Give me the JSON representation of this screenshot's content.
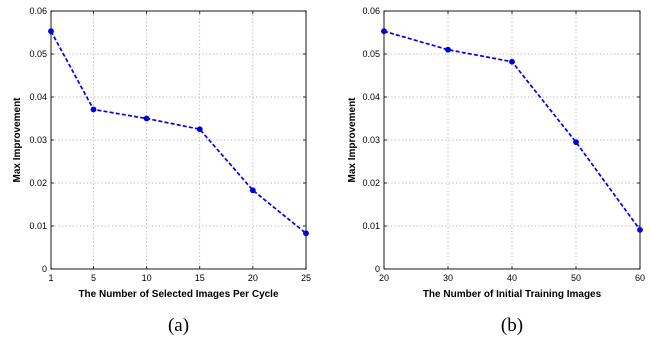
{
  "chart_data": [
    {
      "type": "line",
      "xlabel": "The Number of Selected Images Per Cycle",
      "ylabel": "Max Improvement",
      "caption": "(a)",
      "xlim": [
        1,
        25
      ],
      "ylim": [
        0,
        0.06
      ],
      "xticks": [
        1,
        5,
        10,
        15,
        20,
        25
      ],
      "yticks": [
        0,
        0.01,
        0.02,
        0.03,
        0.04,
        0.05,
        0.06
      ],
      "ytick_labels": [
        "0",
        "0.01",
        "0.02",
        "0.03",
        "0.04",
        "0.05",
        "0.06"
      ],
      "grid": true,
      "series": [
        {
          "x": [
            1,
            5,
            10,
            15,
            20,
            25
          ],
          "y": [
            0.0553,
            0.0371,
            0.035,
            0.0325,
            0.0183,
            0.0083
          ]
        }
      ],
      "color": "#0000ee"
    },
    {
      "type": "line",
      "xlabel": "The  Number of Initial Training Images",
      "ylabel": "Max Improvement",
      "caption": "(b)",
      "xlim": [
        20,
        60
      ],
      "ylim": [
        0,
        0.06
      ],
      "xticks": [
        20,
        30,
        40,
        50,
        60
      ],
      "yticks": [
        0,
        0.01,
        0.02,
        0.03,
        0.04,
        0.05,
        0.06
      ],
      "ytick_labels": [
        "0",
        "0.01",
        "0.02",
        "0.03",
        "0.04",
        "0.05",
        "0.06"
      ],
      "grid": true,
      "series": [
        {
          "x": [
            20,
            30,
            40,
            50,
            60
          ],
          "y": [
            0.0553,
            0.051,
            0.0482,
            0.0295,
            0.0091
          ]
        }
      ],
      "color": "#0000ee"
    }
  ]
}
